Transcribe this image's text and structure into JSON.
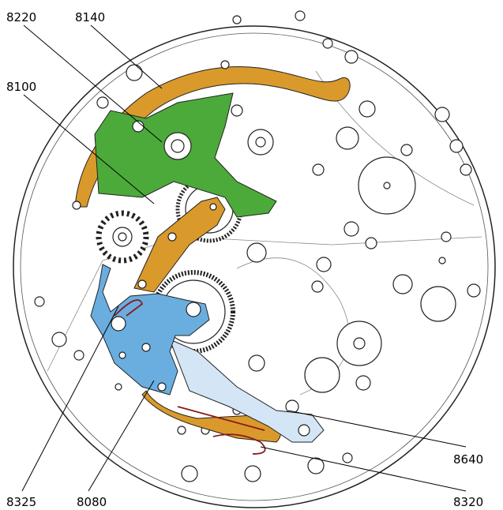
{
  "labels": [
    "8220",
    "8140",
    "8100",
    "8325",
    "8080",
    "8640",
    "8320"
  ]
}
